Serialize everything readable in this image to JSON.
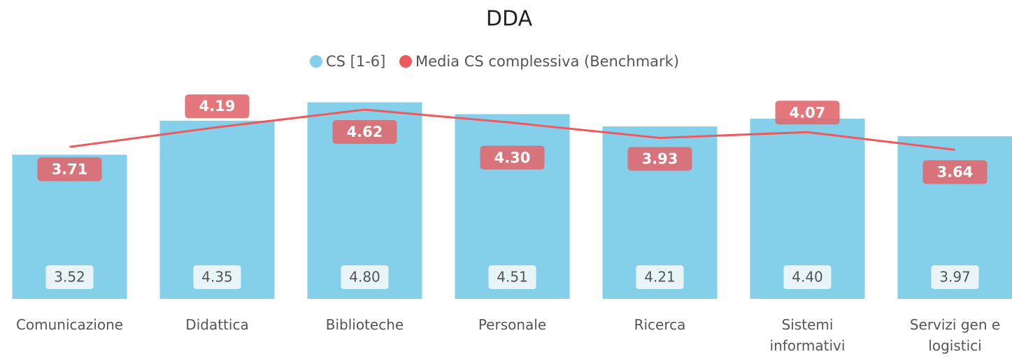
{
  "chart_data": {
    "type": "bar_line",
    "title": "DDA",
    "categories": [
      "Comunicazione",
      "Didattica",
      "Biblioteche",
      "Personale",
      "Ricerca",
      "Sistemi informativi",
      "Servizi gen e logistici"
    ],
    "series": [
      {
        "name": "CS [1-6]",
        "color": "#84d0ea",
        "type": "bar",
        "values": [
          3.52,
          4.35,
          4.8,
          4.51,
          4.21,
          4.4,
          3.97
        ],
        "value_labels": [
          "3.52",
          "4.35",
          "4.80",
          "4.51",
          "4.21",
          "4.40",
          "3.97"
        ]
      },
      {
        "name": "Media CS complessiva (Benchmark)",
        "color": "#f0595c",
        "type": "line",
        "values": [
          3.71,
          4.19,
          4.62,
          4.3,
          3.93,
          4.07,
          3.64
        ],
        "value_labels": [
          "3.71",
          "4.19",
          "4.62",
          "4.30",
          "3.93",
          "4.07",
          "3.64"
        ]
      }
    ],
    "ylim": [
      0,
      5.2
    ]
  }
}
